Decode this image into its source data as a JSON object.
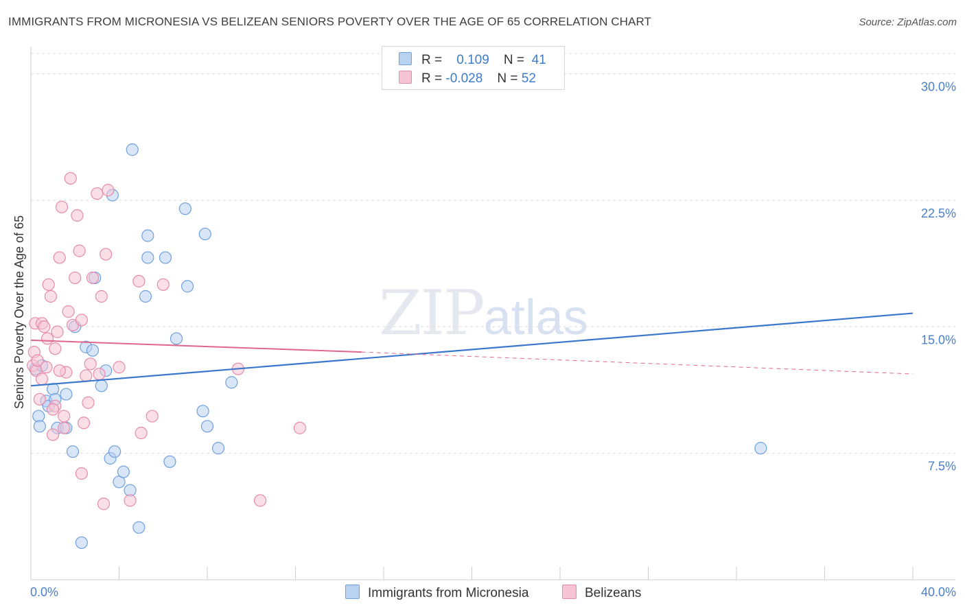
{
  "title": "IMMIGRANTS FROM MICRONESIA VS BELIZEAN SENIORS POVERTY OVER THE AGE OF 65 CORRELATION CHART",
  "source": "Source: ZipAtlas.com",
  "watermark": {
    "zip": "ZIP",
    "atlas": "atlas"
  },
  "legend": {
    "rows": [
      {
        "r_label": "R =",
        "r_value": "0.109",
        "n_label": "N =",
        "n_value": "41"
      },
      {
        "r_label": "R =",
        "r_value": "-0.028",
        "n_label": "N =",
        "n_value": "52"
      }
    ]
  },
  "bottom_legend": {
    "series1": "Immigrants from Micronesia",
    "series2": "Belizeans"
  },
  "colors": {
    "blue_fill": "#b8d2f2",
    "blue_stroke": "#6f9fdd",
    "blue_line": "#3a76cc",
    "pink_fill": "#f6c4d4",
    "pink_stroke": "#e68aa8",
    "pink_line": "#e0668e",
    "grid": "#dddddd",
    "axis_text": "#4a7fc8"
  },
  "chart_data": {
    "type": "scatter",
    "title": "IMMIGRANTS FROM MICRONESIA VS BELIZEAN SENIORS POVERTY OVER THE AGE OF 65 CORRELATION CHART",
    "xlabel": "",
    "ylabel": "Seniors Poverty Over the Age of 65",
    "xlim": [
      0,
      40
    ],
    "ylim": [
      0,
      31.2
    ],
    "x_tick_labels": [
      "0.0%",
      "40.0%"
    ],
    "y_ticks": [
      7.5,
      15.0,
      22.5,
      30.0
    ],
    "y_tick_labels": [
      "7.5%",
      "15.0%",
      "22.5%",
      "30.0%"
    ],
    "grid": true,
    "series": [
      {
        "name": "Immigrants from Micronesia",
        "color": "#6f9fdd",
        "x": [
          0.2,
          0.35,
          0.4,
          0.5,
          0.7,
          0.8,
          1.0,
          1.1,
          1.2,
          1.6,
          1.6,
          1.9,
          2.0,
          2.3,
          2.5,
          2.8,
          2.9,
          3.2,
          3.4,
          3.6,
          3.8,
          3.7,
          4.0,
          4.2,
          4.5,
          4.6,
          4.9,
          5.2,
          5.3,
          5.3,
          6.1,
          6.3,
          6.6,
          7.0,
          7.1,
          7.8,
          7.9,
          8.0,
          8.5,
          9.1,
          33.1
        ],
        "y": [
          12.5,
          9.7,
          9.1,
          12.7,
          10.6,
          10.3,
          11.3,
          10.7,
          9.0,
          11.0,
          9.0,
          7.6,
          15.0,
          2.2,
          13.8,
          13.6,
          17.9,
          11.5,
          12.4,
          7.2,
          7.6,
          22.8,
          5.8,
          6.4,
          5.3,
          25.5,
          3.1,
          16.8,
          20.4,
          19.1,
          19.1,
          7.0,
          14.3,
          22.0,
          17.4,
          10.0,
          20.5,
          9.1,
          7.8,
          11.7,
          7.8
        ]
      },
      {
        "name": "Belizeans",
        "color": "#e68aa8",
        "x": [
          0.1,
          0.15,
          0.2,
          0.25,
          0.3,
          0.4,
          0.5,
          0.6,
          0.7,
          0.75,
          0.8,
          0.9,
          1.0,
          1.1,
          1.1,
          1.2,
          1.3,
          1.4,
          1.5,
          1.5,
          1.6,
          1.7,
          1.8,
          1.9,
          2.0,
          2.1,
          2.2,
          2.3,
          2.3,
          2.4,
          2.5,
          2.6,
          2.7,
          2.8,
          3.0,
          3.1,
          3.2,
          3.3,
          3.4,
          3.5,
          4.0,
          4.5,
          4.9,
          5.0,
          5.5,
          6.0,
          9.4,
          10.4,
          12.2,
          0.5,
          1.0,
          1.3
        ],
        "y": [
          12.7,
          13.5,
          15.2,
          12.4,
          13.0,
          10.7,
          15.2,
          15.0,
          12.6,
          14.3,
          17.5,
          16.8,
          8.6,
          10.3,
          13.7,
          14.7,
          19.1,
          22.1,
          9.7,
          9.0,
          12.3,
          15.9,
          23.8,
          15.1,
          17.9,
          21.6,
          19.5,
          6.3,
          15.4,
          9.3,
          12.1,
          10.5,
          12.8,
          17.9,
          22.9,
          12.2,
          16.8,
          4.5,
          19.3,
          23.1,
          12.6,
          4.7,
          17.7,
          8.7,
          9.7,
          17.5,
          12.5,
          4.7,
          9.0,
          11.9,
          10.1,
          12.4
        ]
      }
    ],
    "trend_lines": [
      {
        "series": "Immigrants from Micronesia",
        "x": [
          0,
          40
        ],
        "y": [
          11.5,
          15.8
        ],
        "style": "solid"
      },
      {
        "series": "Belizeans",
        "x": [
          0,
          15
        ],
        "y": [
          14.2,
          13.5
        ],
        "style": "solid"
      },
      {
        "series": "Belizeans",
        "x": [
          15,
          40
        ],
        "y": [
          13.5,
          12.2
        ],
        "style": "dashed"
      }
    ]
  }
}
